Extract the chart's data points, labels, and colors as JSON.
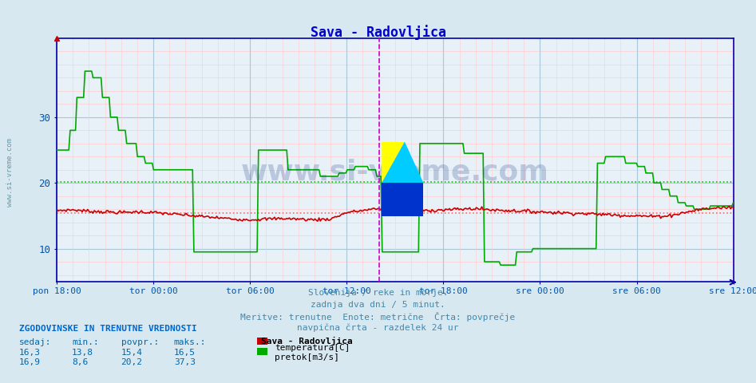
{
  "title": "Sava - Radovljica",
  "title_color": "#0000cc",
  "bg_color": "#d8e8f0",
  "plot_bg_color": "#e8f0f8",
  "temp_color": "#cc0000",
  "flow_color": "#00aa00",
  "avg_temp": 15.4,
  "avg_flow": 20.2,
  "avg_temp_color": "#ff6666",
  "avg_flow_color": "#00cc00",
  "ylim_min": 5.0,
  "ylim_max": 42.0,
  "yticks": [
    10,
    20,
    30
  ],
  "xlabel_color": "#0055aa",
  "xtick_labels": [
    "pon 18:00",
    "tor 00:00",
    "tor 06:00",
    "tor 12:00",
    "tor 18:00",
    "sre 00:00",
    "sre 06:00",
    "sre 12:00"
  ],
  "xtick_positions": [
    0,
    6,
    12,
    18,
    24,
    30,
    36,
    42
  ],
  "hours_total": 42,
  "vline_color": "#cc00cc",
  "footer_lines": [
    "Slovenija / reke in morje.",
    "zadnja dva dni / 5 minut.",
    "Meritve: trenutne  Enote: metrične  Črta: povprečje",
    "navpična črta - razdelek 24 ur"
  ],
  "footer_color": "#4488aa",
  "legend_title": "Sava - Radovljica",
  "stat_header": "ZGODOVINSKE IN TRENUTNE VREDNOSTI",
  "stat_header_color": "#0066cc",
  "stat_col_headers": [
    "sedaj:",
    "min.:",
    "povpr.:",
    "maks.:"
  ],
  "stat_temp": [
    16.3,
    13.8,
    15.4,
    16.5
  ],
  "stat_flow": [
    16.9,
    8.6,
    20.2,
    37.3
  ],
  "stat_color": "#0066aa",
  "watermark": "www.si-vreme.com",
  "watermark_color": "#1a3a8a",
  "watermark_alpha": 0.22,
  "left_label": "www.si-vreme.com",
  "left_label_color": "#6699aa",
  "flow_profile": [
    [
      0,
      25
    ],
    [
      0.3,
      25
    ],
    [
      0.8,
      28
    ],
    [
      1.2,
      33
    ],
    [
      1.7,
      37
    ],
    [
      2.2,
      36
    ],
    [
      2.8,
      33
    ],
    [
      3.3,
      30
    ],
    [
      3.8,
      28
    ],
    [
      4.3,
      26
    ],
    [
      5.0,
      24
    ],
    [
      5.5,
      23
    ],
    [
      6.0,
      22
    ],
    [
      6.5,
      22
    ],
    [
      7.0,
      22
    ],
    [
      7.5,
      22
    ],
    [
      8.0,
      22
    ],
    [
      8.5,
      9.5
    ],
    [
      9.0,
      9.5
    ],
    [
      10.0,
      9.5
    ],
    [
      11.0,
      9.5
    ],
    [
      12.0,
      9.5
    ],
    [
      12.5,
      25
    ],
    [
      13.0,
      25
    ],
    [
      13.5,
      25
    ],
    [
      14.0,
      25
    ],
    [
      14.3,
      22
    ],
    [
      15.0,
      22
    ],
    [
      15.5,
      22
    ],
    [
      16.0,
      22
    ],
    [
      16.3,
      21
    ],
    [
      17.0,
      21
    ],
    [
      17.5,
      21.5
    ],
    [
      18.0,
      22
    ],
    [
      18.5,
      22.5
    ],
    [
      19.0,
      22.5
    ],
    [
      19.3,
      22
    ],
    [
      19.8,
      21
    ],
    [
      20.2,
      9.5
    ],
    [
      21.0,
      9.5
    ],
    [
      22.0,
      9.5
    ],
    [
      22.5,
      26
    ],
    [
      23.0,
      26
    ],
    [
      24.0,
      26
    ],
    [
      25.0,
      26
    ],
    [
      25.3,
      24.5
    ],
    [
      26.0,
      24.5
    ],
    [
      26.5,
      8.0
    ],
    [
      27.0,
      8.0
    ],
    [
      27.5,
      7.5
    ],
    [
      28.0,
      7.5
    ],
    [
      28.5,
      9.5
    ],
    [
      29.0,
      9.5
    ],
    [
      29.5,
      10
    ],
    [
      30.0,
      10
    ],
    [
      30.5,
      10
    ],
    [
      31.0,
      10
    ],
    [
      32.0,
      10
    ],
    [
      33.0,
      10
    ],
    [
      33.5,
      23
    ],
    [
      34.0,
      24
    ],
    [
      34.5,
      24
    ],
    [
      35.0,
      24
    ],
    [
      35.3,
      23
    ],
    [
      36.0,
      22.5
    ],
    [
      36.5,
      21.5
    ],
    [
      37.0,
      20
    ],
    [
      37.5,
      19
    ],
    [
      38.0,
      18
    ],
    [
      38.5,
      17
    ],
    [
      39.0,
      16.5
    ],
    [
      39.5,
      16
    ],
    [
      40.0,
      16
    ],
    [
      40.5,
      16.5
    ],
    [
      41.0,
      16.5
    ],
    [
      42.0,
      17
    ]
  ],
  "temp_profile": [
    [
      0,
      15.8
    ],
    [
      1,
      15.9
    ],
    [
      2,
      15.7
    ],
    [
      3,
      15.6
    ],
    [
      4,
      15.5
    ],
    [
      5,
      15.6
    ],
    [
      6,
      15.5
    ],
    [
      7,
      15.3
    ],
    [
      8,
      15.1
    ],
    [
      9,
      14.9
    ],
    [
      10,
      14.7
    ],
    [
      11,
      14.5
    ],
    [
      12,
      14.4
    ],
    [
      13,
      14.5
    ],
    [
      14,
      14.6
    ],
    [
      15,
      14.5
    ],
    [
      16,
      14.4
    ],
    [
      17,
      14.5
    ],
    [
      18,
      15.5
    ],
    [
      19,
      15.8
    ],
    [
      20,
      16.1
    ],
    [
      21,
      16.0
    ],
    [
      22,
      15.9
    ],
    [
      23,
      15.8
    ],
    [
      24,
      15.9
    ],
    [
      25,
      16.0
    ],
    [
      26,
      16.1
    ],
    [
      27,
      15.9
    ],
    [
      28,
      15.8
    ],
    [
      29,
      15.7
    ],
    [
      30,
      15.6
    ],
    [
      31,
      15.5
    ],
    [
      32,
      15.4
    ],
    [
      33,
      15.3
    ],
    [
      34,
      15.2
    ],
    [
      35,
      15.1
    ],
    [
      36,
      15.0
    ],
    [
      37,
      14.9
    ],
    [
      38,
      15.0
    ],
    [
      39,
      15.5
    ],
    [
      40,
      16.0
    ],
    [
      41,
      16.2
    ],
    [
      42,
      16.3
    ]
  ]
}
